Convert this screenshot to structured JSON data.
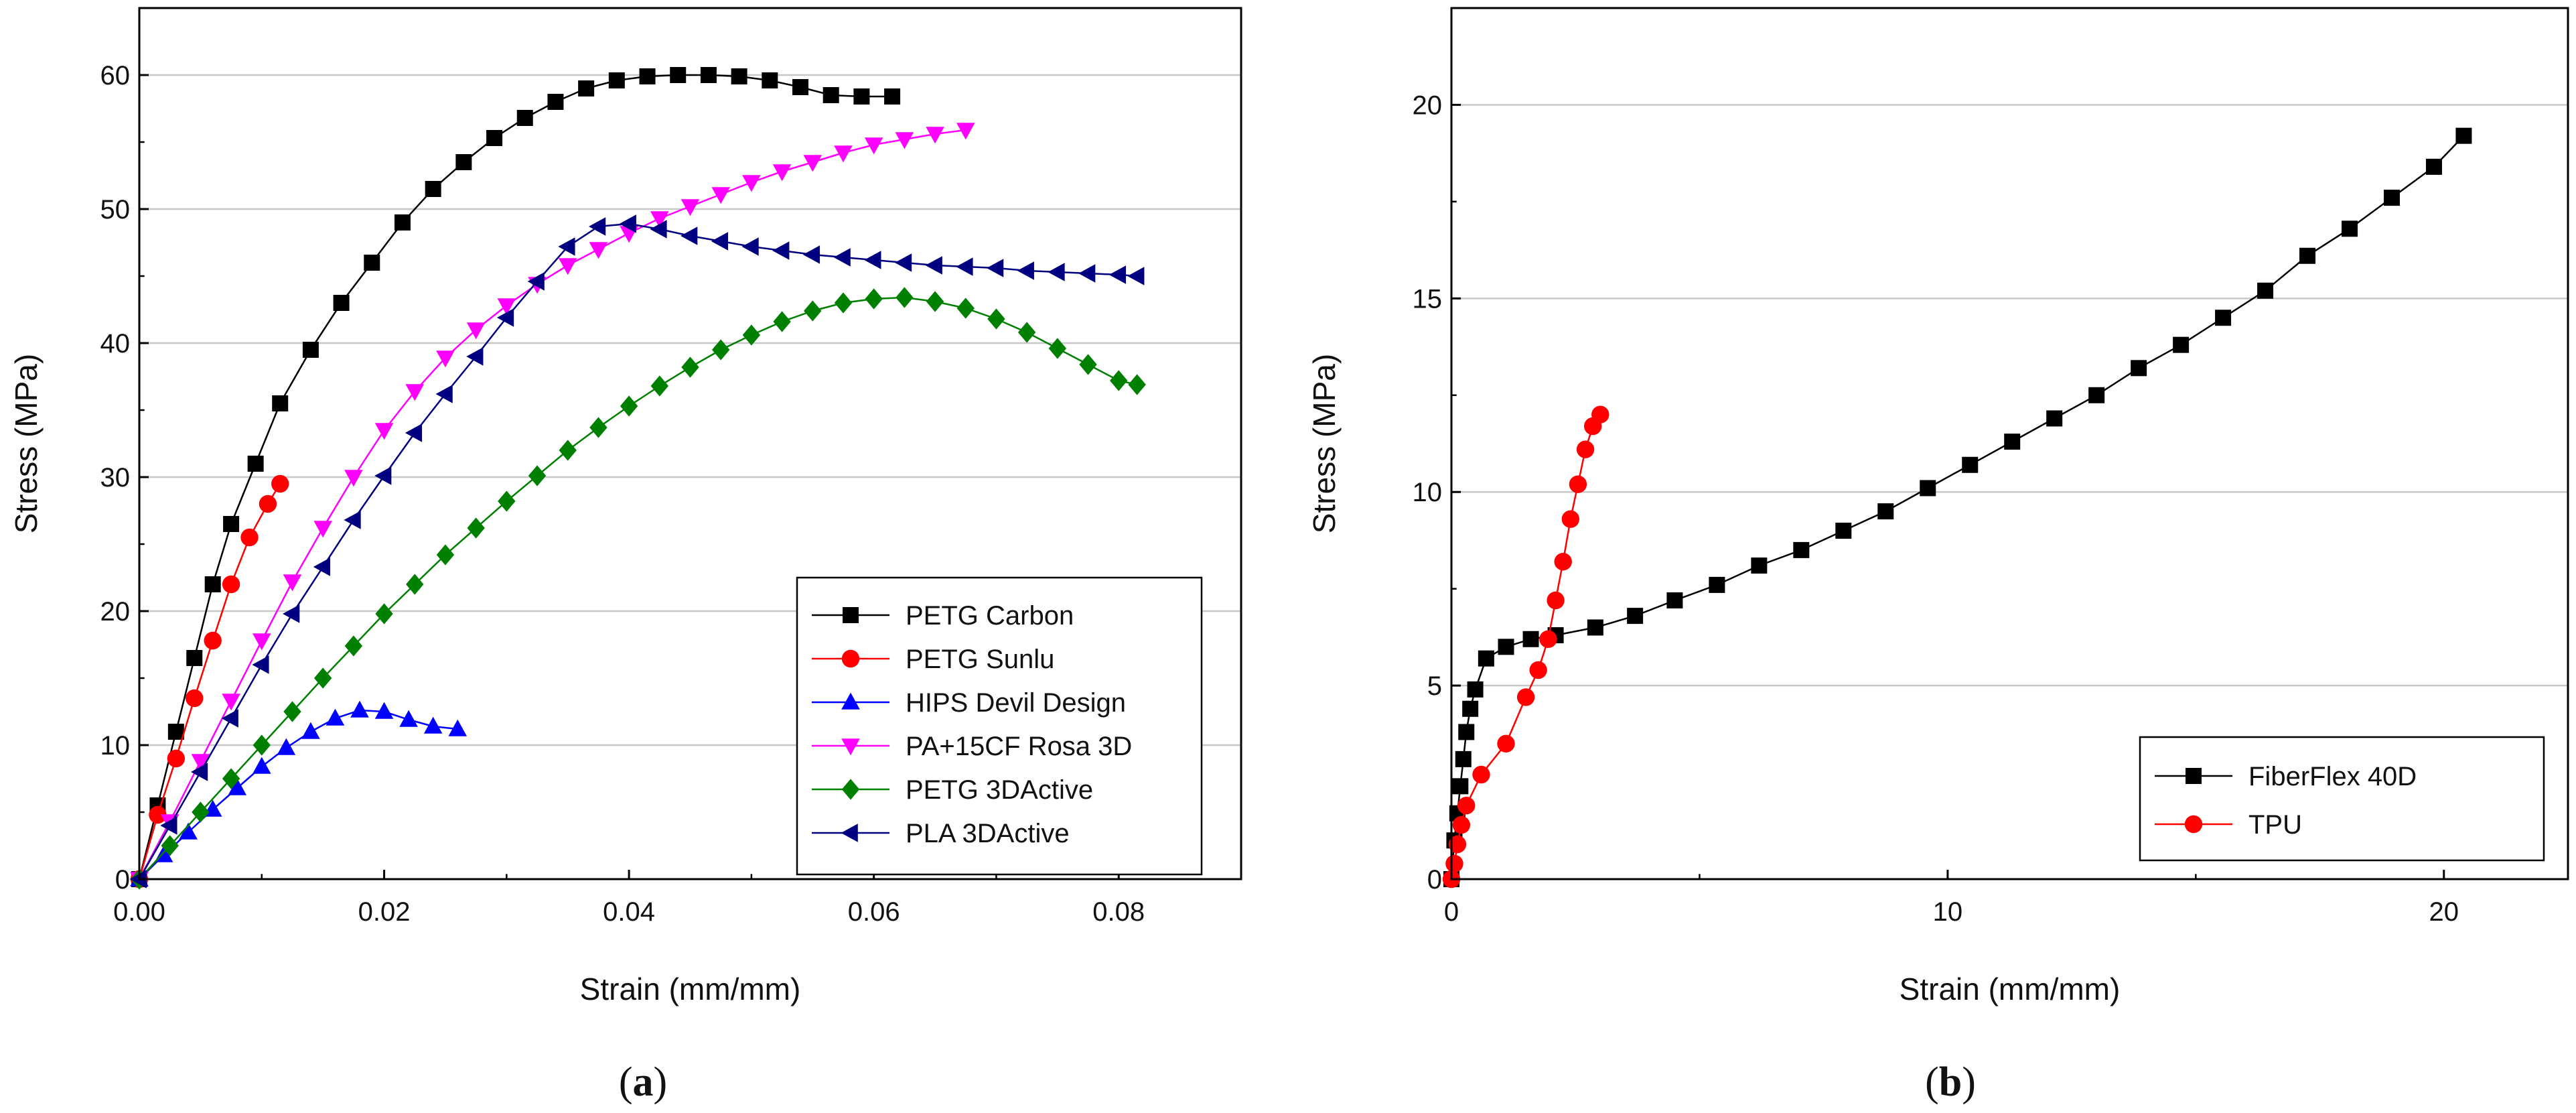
{
  "chart_data": [
    {
      "type": "line",
      "panel_label": "(a)",
      "panel_letter": "a",
      "xlabel": "Strain (mm/mm)",
      "ylabel": "Stress (MPa)",
      "xlim": [
        0,
        0.09
      ],
      "ylim": [
        0,
        65
      ],
      "xticks": [
        0.0,
        0.02,
        0.04,
        0.06,
        0.08
      ],
      "xtick_labels": [
        "0.00",
        "0.02",
        "0.04",
        "0.06",
        "0.08"
      ],
      "yticks": [
        0,
        10,
        20,
        30,
        40,
        50,
        60
      ],
      "ytick_labels": [
        "0",
        "10",
        "20",
        "30",
        "40",
        "50",
        "60"
      ],
      "grid": "horizontal",
      "legend_position": "bottom-right",
      "series": [
        {
          "name": "PETG Carbon",
          "color": "#000000",
          "marker": "square",
          "x": [
            0,
            0.0015,
            0.003,
            0.0045,
            0.006,
            0.0075,
            0.0095,
            0.0115,
            0.014,
            0.0165,
            0.019,
            0.0215,
            0.024,
            0.0265,
            0.029,
            0.0315,
            0.034,
            0.0365,
            0.039,
            0.0415,
            0.044,
            0.0465,
            0.049,
            0.0515,
            0.054,
            0.0565,
            0.059,
            0.0615
          ],
          "y": [
            0,
            5.5,
            11,
            16.5,
            22,
            26.5,
            31,
            35.5,
            39.5,
            43,
            46,
            49,
            51.5,
            53.5,
            55.3,
            56.8,
            58,
            59,
            59.6,
            59.9,
            60,
            60,
            59.9,
            59.6,
            59.1,
            58.5,
            58.4,
            58.4
          ]
        },
        {
          "name": "PETG Sunlu",
          "color": "#ff0000",
          "marker": "circle",
          "x": [
            0,
            0.0015,
            0.003,
            0.0045,
            0.006,
            0.0075,
            0.009,
            0.0105,
            0.0115
          ],
          "y": [
            0,
            4.8,
            9,
            13.5,
            17.8,
            22,
            25.5,
            28,
            29.5
          ]
        },
        {
          "name": "HIPS Devil Design",
          "color": "#0000ff",
          "marker": "triangle-up",
          "x": [
            0,
            0.002,
            0.004,
            0.006,
            0.008,
            0.01,
            0.012,
            0.014,
            0.016,
            0.018,
            0.02,
            0.022,
            0.024,
            0.026
          ],
          "y": [
            0,
            1.8,
            3.5,
            5.2,
            6.8,
            8.4,
            9.8,
            11,
            12,
            12.6,
            12.5,
            11.9,
            11.4,
            11.2
          ]
        },
        {
          "name": "PA+15CF Rosa 3D",
          "color": "#ff00ff",
          "marker": "triangle-down",
          "x": [
            0,
            0.0025,
            0.005,
            0.0075,
            0.01,
            0.0125,
            0.015,
            0.0175,
            0.02,
            0.0225,
            0.025,
            0.0275,
            0.03,
            0.0325,
            0.035,
            0.0375,
            0.04,
            0.0425,
            0.045,
            0.0475,
            0.05,
            0.0525,
            0.055,
            0.0575,
            0.06,
            0.0625,
            0.065,
            0.0675
          ],
          "y": [
            0,
            4.3,
            8.8,
            13.3,
            17.8,
            22.2,
            26.2,
            30,
            33.5,
            36.4,
            38.9,
            41,
            42.8,
            44.4,
            45.8,
            47,
            48.2,
            49.3,
            50.2,
            51.1,
            52,
            52.8,
            53.5,
            54.2,
            54.8,
            55.2,
            55.6,
            55.9
          ]
        },
        {
          "name": "PETG 3DActive",
          "color": "#008000",
          "marker": "diamond",
          "x": [
            0,
            0.0025,
            0.005,
            0.0075,
            0.01,
            0.0125,
            0.015,
            0.0175,
            0.02,
            0.0225,
            0.025,
            0.0275,
            0.03,
            0.0325,
            0.035,
            0.0375,
            0.04,
            0.0425,
            0.045,
            0.0475,
            0.05,
            0.0525,
            0.055,
            0.0575,
            0.06,
            0.0625,
            0.065,
            0.0675,
            0.07,
            0.0725,
            0.075,
            0.0775,
            0.08,
            0.0815
          ],
          "y": [
            0,
            2.5,
            5,
            7.5,
            10,
            12.5,
            15,
            17.4,
            19.8,
            22,
            24.2,
            26.2,
            28.2,
            30.1,
            32,
            33.7,
            35.3,
            36.8,
            38.2,
            39.5,
            40.6,
            41.6,
            42.4,
            43,
            43.3,
            43.4,
            43.1,
            42.6,
            41.8,
            40.8,
            39.6,
            38.4,
            37.2,
            36.9
          ]
        },
        {
          "name": "PLA 3DActive",
          "color": "#000080",
          "marker": "triangle-left",
          "x": [
            0,
            0.0025,
            0.005,
            0.0075,
            0.01,
            0.0125,
            0.015,
            0.0175,
            0.02,
            0.0225,
            0.025,
            0.0275,
            0.03,
            0.0325,
            0.035,
            0.0375,
            0.04,
            0.0425,
            0.045,
            0.0475,
            0.05,
            0.0525,
            0.055,
            0.0575,
            0.06,
            0.0625,
            0.065,
            0.0675,
            0.07,
            0.0725,
            0.075,
            0.0775,
            0.08,
            0.0815
          ],
          "y": [
            0,
            4,
            8,
            12,
            16,
            19.8,
            23.3,
            26.8,
            30.1,
            33.3,
            36.2,
            39,
            41.9,
            44.6,
            47.2,
            48.7,
            48.9,
            48.5,
            48,
            47.6,
            47.2,
            46.9,
            46.6,
            46.4,
            46.2,
            46,
            45.8,
            45.7,
            45.6,
            45.4,
            45.3,
            45.2,
            45.1,
            45
          ]
        }
      ]
    },
    {
      "type": "line",
      "panel_label": "(b)",
      "panel_letter": "b",
      "xlabel": "Strain (mm/mm)",
      "ylabel": "Stress (MPa)",
      "xlim": [
        0,
        22.5
      ],
      "ylim": [
        0,
        22.5
      ],
      "xticks": [
        0,
        10,
        20
      ],
      "xtick_labels": [
        "0",
        "10",
        "20"
      ],
      "yticks": [
        0,
        5,
        10,
        15,
        20
      ],
      "ytick_labels": [
        "0",
        "5",
        "10",
        "15",
        "20"
      ],
      "grid": "horizontal",
      "legend_position": "bottom-right",
      "series": [
        {
          "name": "FiberFlex 40D",
          "color": "#000000",
          "marker": "square",
          "x": [
            0,
            0.06,
            0.12,
            0.18,
            0.24,
            0.3,
            0.38,
            0.48,
            0.7,
            1.1,
            1.6,
            2.1,
            2.9,
            3.7,
            4.5,
            5.35,
            6.2,
            7.05,
            7.9,
            8.75,
            9.6,
            10.45,
            11.3,
            12.15,
            13,
            13.85,
            14.7,
            15.55,
            16.4,
            17.25,
            18.1,
            18.95,
            19.8,
            20.4
          ],
          "y": [
            0,
            1,
            1.7,
            2.4,
            3.1,
            3.8,
            4.4,
            4.9,
            5.7,
            6,
            6.2,
            6.3,
            6.5,
            6.8,
            7.2,
            7.6,
            8.1,
            8.5,
            9,
            9.5,
            10.1,
            10.7,
            11.3,
            11.9,
            12.5,
            13.2,
            13.8,
            14.5,
            15.2,
            16.1,
            16.8,
            17.6,
            18.4,
            19.2
          ]
        },
        {
          "name": "TPU",
          "color": "#ff0000",
          "marker": "circle",
          "x": [
            0,
            0.06,
            0.12,
            0.2,
            0.3,
            0.6,
            1.1,
            1.5,
            1.75,
            1.95,
            2.1,
            2.25,
            2.4,
            2.55,
            2.7,
            2.85,
            3.0
          ],
          "y": [
            0,
            0.4,
            0.9,
            1.4,
            1.9,
            2.7,
            3.5,
            4.7,
            5.4,
            6.2,
            7.2,
            8.2,
            9.3,
            10.2,
            11.1,
            11.7,
            12
          ]
        }
      ]
    }
  ]
}
